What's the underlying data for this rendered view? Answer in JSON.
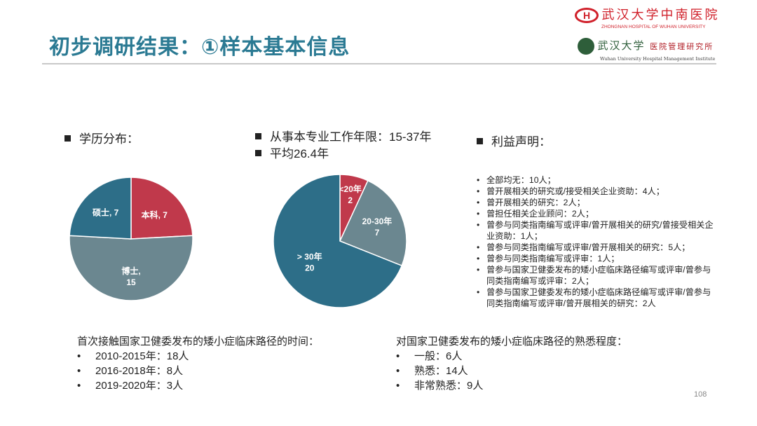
{
  "title": "初步调研结果：①样本基本信息",
  "logos": {
    "hospital_cn": "武汉大学中南医院",
    "hospital_en": "ZHONGNAN HOSPITAL OF WUHAN UNIVERSITY",
    "institute_cn": "武汉大学",
    "institute_cn2": "医院管理研究所",
    "institute_en": "Wuhan University Hospital Management Institute"
  },
  "education": {
    "heading": "学历分布："
  },
  "work_years": {
    "heading1": "从事本专业工作年限：15-37年",
    "heading2": "平均26.4年"
  },
  "interest": {
    "heading": "利益声明：",
    "items": [
      "全部均无：10人；",
      "曾开展相关的研究或/接受相关企业资助：4人；",
      "曾开展相关的研究：2人；",
      "曾担任相关企业顾问：2人；",
      "曾参与同类指南编写或评审/曾开展相关的研究/曾接受相关企业资助：1人；",
      "曾参与同类指南编写或评审/曾开展相关的研究：5人；",
      "曾参与同类指南编写或评审：1人；",
      "曾参与国家卫健委发布的矮小症临床路径编写或评审/曾参与同类指南编写或评审：2人；",
      "曾参与国家卫健委发布的矮小症临床路径编写或评审/曾参与同类指南编写或评审/曾开展相关的研究：2人"
    ]
  },
  "first_contact": {
    "heading": "首次接触国家卫健委发布的矮小症临床路径的时间：",
    "items": [
      "2010-2015年：18人",
      "2016-2018年：8人",
      "2019-2020年：3人"
    ]
  },
  "familiarity": {
    "heading": "对国家卫健委发布的矮小症临床路径的熟悉程度：",
    "items": [
      "一般：6人",
      "熟悉：14人",
      "非常熟悉：9人"
    ]
  },
  "page_number": "108",
  "colors": {
    "red": "#c0394b",
    "gray": "#6b8790",
    "blue": "#2d6e88",
    "title": "#2b7a93"
  },
  "chart_data": [
    {
      "type": "pie",
      "title": "学历分布",
      "labels": [
        "本科",
        "博士",
        "硕士"
      ],
      "values": [
        7,
        15,
        7
      ],
      "label_text": [
        "本科, 7",
        "博士,",
        "硕士, 7"
      ],
      "label_text2": [
        "",
        "15",
        ""
      ],
      "colors": [
        "#c0394b",
        "#6b8790",
        "#2d6e88"
      ]
    },
    {
      "type": "pie",
      "title": "从事本专业工作年限",
      "labels": [
        "<20年",
        "20-30年",
        "> 30年"
      ],
      "values": [
        2,
        7,
        20
      ],
      "label_text": [
        "<20年",
        "20-30年",
        "> 30年"
      ],
      "label_text2": [
        "2",
        "7",
        "20"
      ],
      "colors": [
        "#c0394b",
        "#6b8790",
        "#2d6e88"
      ]
    }
  ]
}
